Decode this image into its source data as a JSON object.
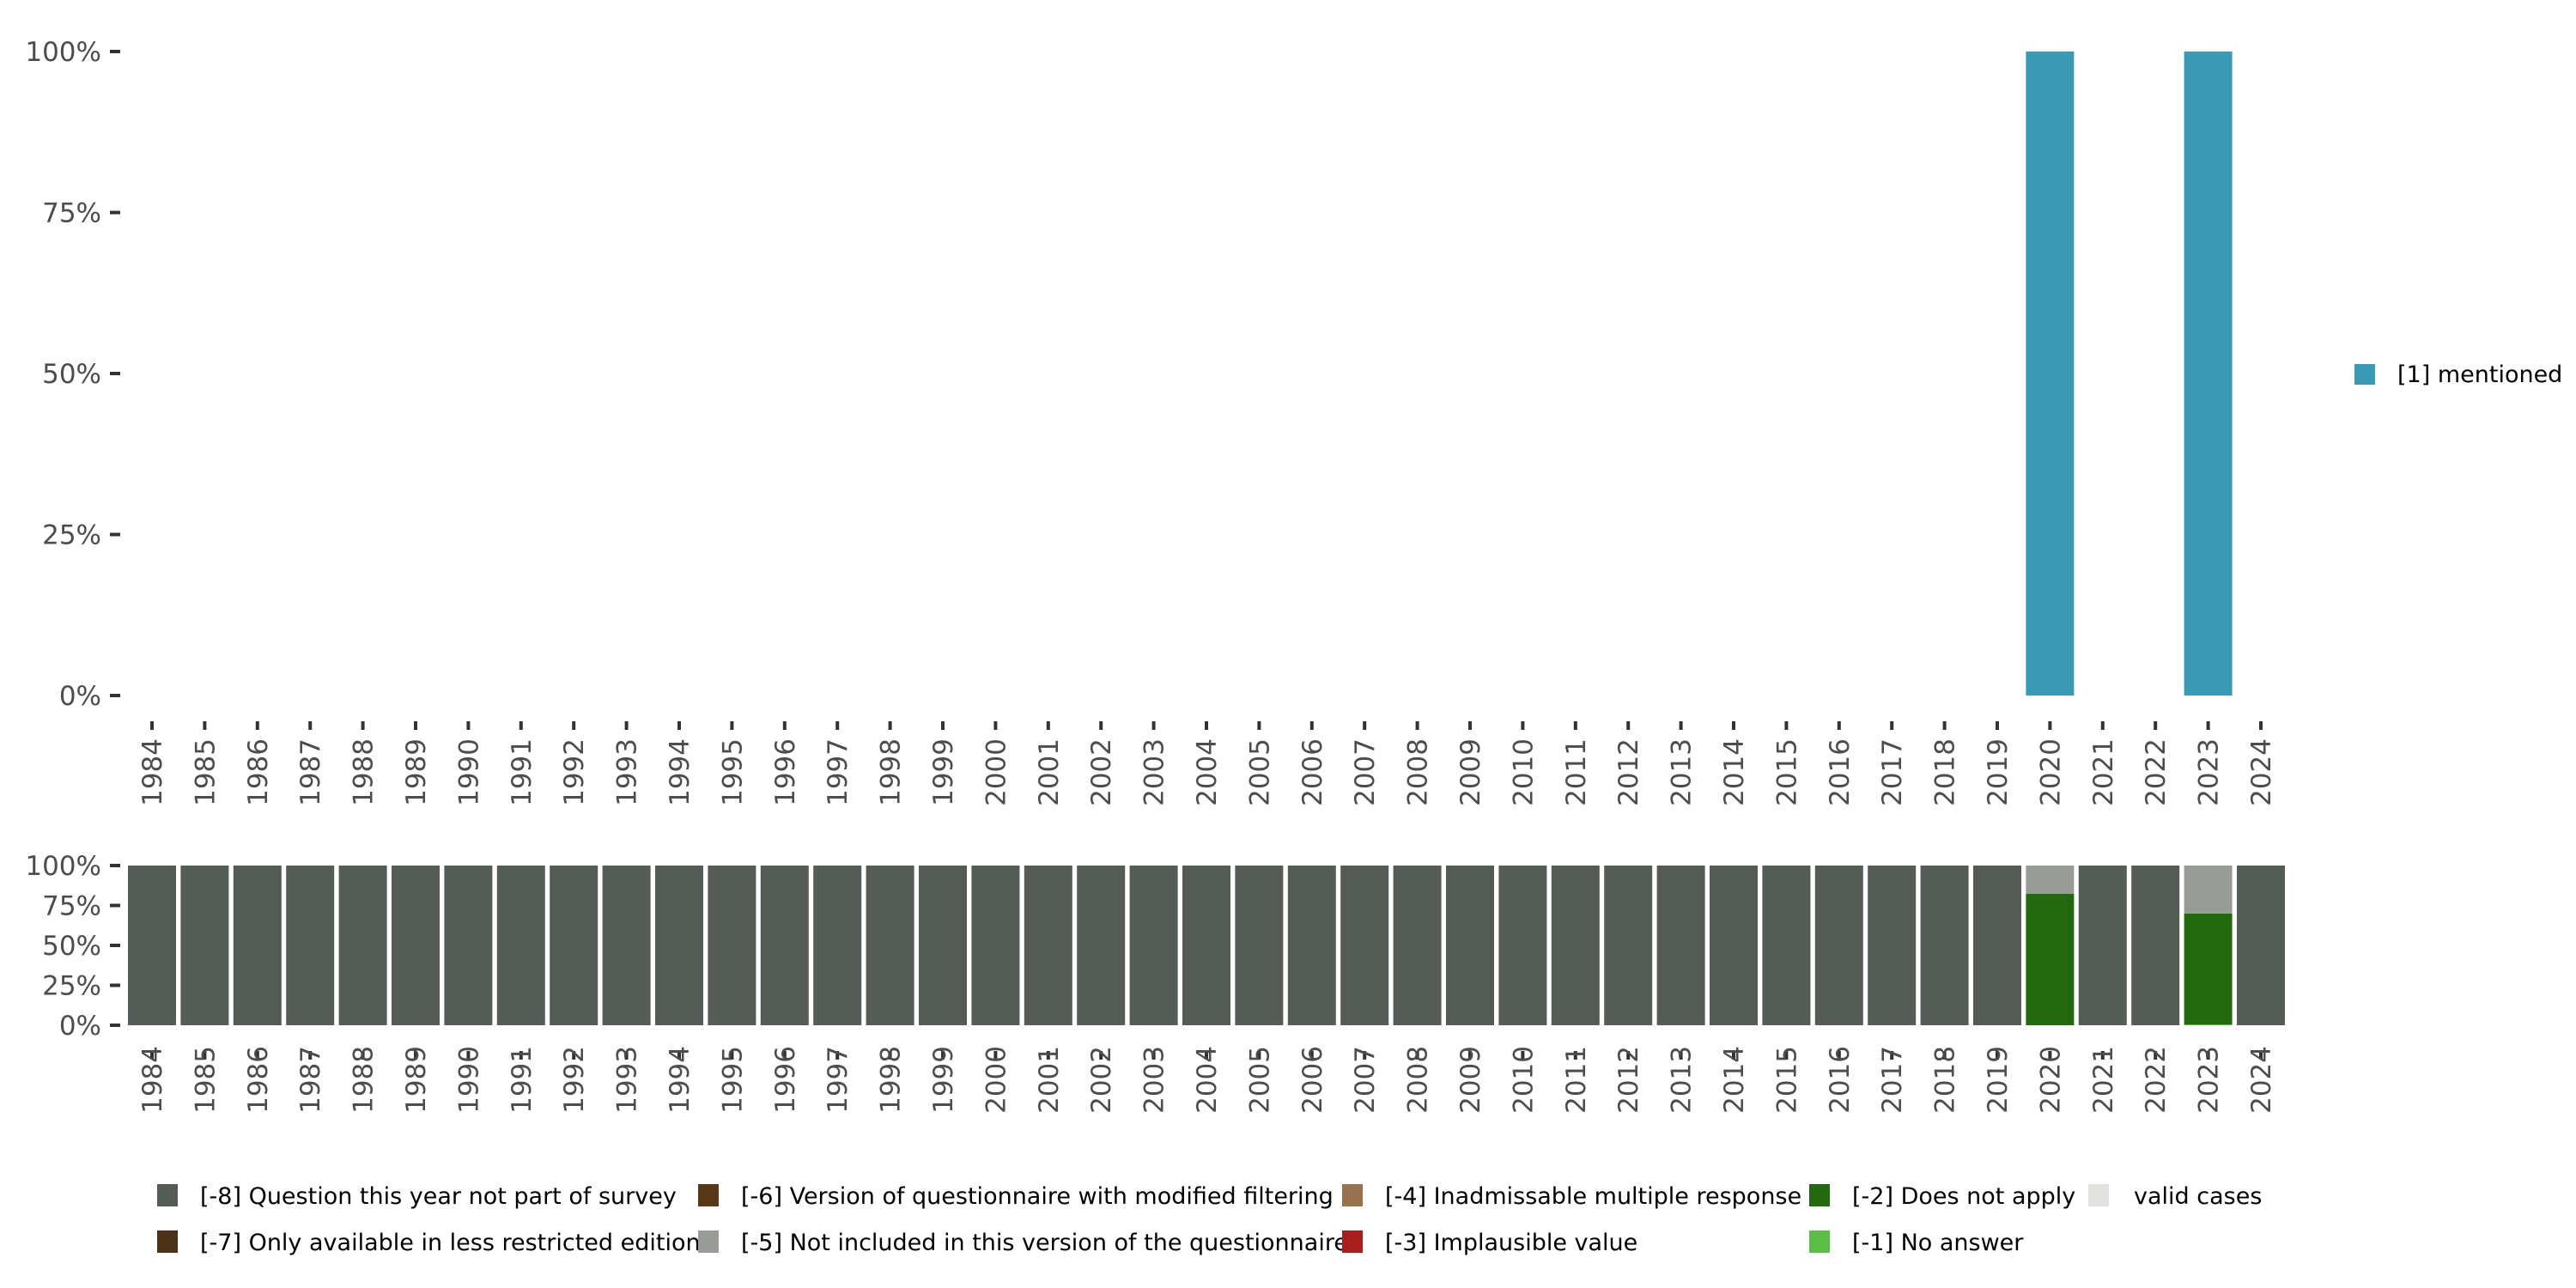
{
  "chart_data": [
    {
      "type": "bar",
      "title": "",
      "xlabel": "",
      "ylabel": "",
      "ylim": [
        0,
        100
      ],
      "yticks": [
        "0%",
        "25%",
        "50%",
        "75%",
        "100%"
      ],
      "categories": [
        "1984",
        "1985",
        "1986",
        "1987",
        "1988",
        "1989",
        "1990",
        "1991",
        "1992",
        "1993",
        "1994",
        "1995",
        "1996",
        "1997",
        "1998",
        "1999",
        "2000",
        "2001",
        "2002",
        "2003",
        "2004",
        "2005",
        "2006",
        "2007",
        "2008",
        "2009",
        "2010",
        "2011",
        "2012",
        "2013",
        "2014",
        "2015",
        "2016",
        "2017",
        "2018",
        "2019",
        "2020",
        "2021",
        "2022",
        "2023",
        "2024"
      ],
      "legend_position": "right",
      "series": [
        {
          "name": "[1] mentioned",
          "color": "#3a9ab3",
          "values": {
            "2020": 100,
            "2023": 100
          }
        }
      ]
    },
    {
      "type": "bar",
      "stacked": true,
      "ylim": [
        0,
        100
      ],
      "yticks": [
        "0%",
        "25%",
        "50%",
        "75%",
        "100%"
      ],
      "categories": [
        "1984",
        "1985",
        "1986",
        "1987",
        "1988",
        "1989",
        "1990",
        "1991",
        "1992",
        "1993",
        "1994",
        "1995",
        "1996",
        "1997",
        "1998",
        "1999",
        "2000",
        "2001",
        "2002",
        "2003",
        "2004",
        "2005",
        "2006",
        "2007",
        "2008",
        "2009",
        "2010",
        "2011",
        "2012",
        "2013",
        "2014",
        "2015",
        "2016",
        "2017",
        "2018",
        "2019",
        "2020",
        "2021",
        "2022",
        "2023",
        "2024"
      ],
      "legend_position": "bottom",
      "legend": [
        {
          "name": "[-8] Question this year not part of survey",
          "color": "#555c55"
        },
        {
          "name": "[-7] Only available in less restricted edition",
          "color": "#4b3219"
        },
        {
          "name": "[-6] Version of questionnaire with modified filtering",
          "color": "#573919"
        },
        {
          "name": "[-5] Not included in this version of the questionnaire",
          "color": "#989b96"
        },
        {
          "name": "[-4] Inadmissable multiple response",
          "color": "#98714e"
        },
        {
          "name": "[-3] Implausible value",
          "color": "#a81e1e"
        },
        {
          "name": "[-2] Does not apply",
          "color": "#22690f"
        },
        {
          "name": "[-1] No answer",
          "color": "#5bbd45"
        },
        {
          "name": "valid cases",
          "color": "#e2e3e0"
        }
      ],
      "stacks": {
        "default": [
          {
            "name": "[-8] Question this year not part of survey",
            "value": 100
          }
        ],
        "2020": [
          {
            "name": "[-2] Does not apply",
            "value": 82.4
          },
          {
            "name": "[-5] Not included in this version of the questionnaire",
            "value": 17.6
          }
        ],
        "2023": [
          {
            "name": "[-1] No answer",
            "value": 0.5
          },
          {
            "name": "[-2] Does not apply",
            "value": 69.5
          },
          {
            "name": "[-5] Not included in this version of the questionnaire",
            "value": 30
          }
        ]
      }
    }
  ]
}
